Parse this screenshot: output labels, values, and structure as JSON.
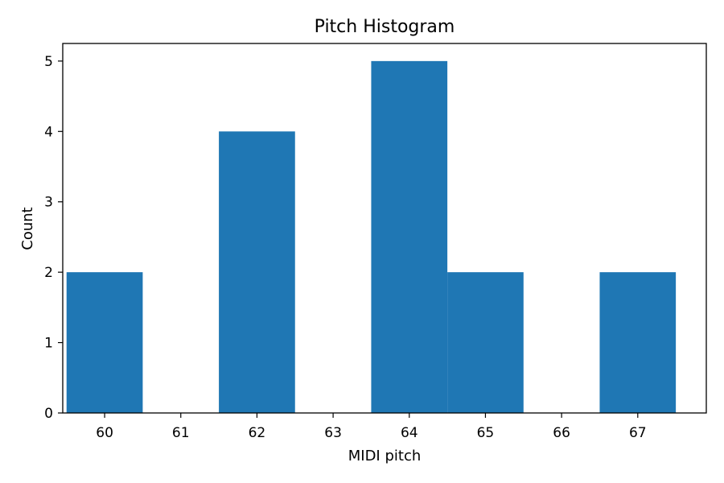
{
  "chart_data": {
    "type": "bar",
    "title": "Pitch Histogram",
    "xlabel": "MIDI pitch",
    "ylabel": "Count",
    "categories": [
      60,
      61,
      62,
      63,
      64,
      65,
      66,
      67
    ],
    "values": [
      2,
      0,
      4,
      0,
      5,
      2,
      0,
      2
    ],
    "bar_width": 1.0,
    "xlim": [
      59.45,
      67.9
    ],
    "ylim": [
      0,
      5.25
    ],
    "xticks": [
      60,
      61,
      62,
      63,
      64,
      65,
      66,
      67
    ],
    "yticks": [
      0,
      1,
      2,
      3,
      4,
      5
    ],
    "grid": false,
    "bar_color": "#1f77b4",
    "axis_color": "#000000"
  }
}
